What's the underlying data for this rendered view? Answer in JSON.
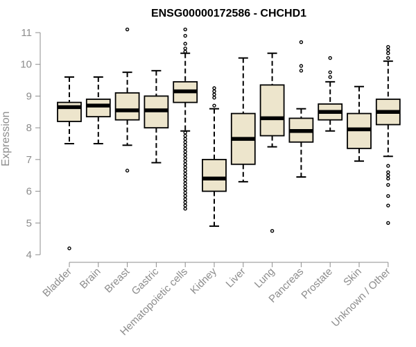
{
  "chart_data": {
    "type": "box",
    "title": "ENSG00000172586 - CHCHD1",
    "xlabel": "",
    "ylabel": "Expression",
    "ylim": [
      4,
      11
    ],
    "yticks": [
      4,
      5,
      6,
      7,
      8,
      9,
      10,
      11
    ],
    "grid": false,
    "legend": "none",
    "colors": {
      "box_fill": "#ede5cc",
      "box_stroke": "#000000",
      "axis": "#8c8c8c"
    },
    "categories": [
      "Bladder",
      "Brain",
      "Breast",
      "Gastric",
      "Hematopoietic cells",
      "Kidney",
      "Liver",
      "Lung",
      "Pancreas",
      "Prostate",
      "Skin",
      "Unknown / Other"
    ],
    "boxes": [
      {
        "category": "Bladder",
        "whisker_low": 7.5,
        "q1": 8.2,
        "median": 8.65,
        "q3": 8.8,
        "whisker_high": 9.6,
        "outliers": [
          4.2
        ]
      },
      {
        "category": "Brain",
        "whisker_low": 7.5,
        "q1": 8.35,
        "median": 8.7,
        "q3": 8.9,
        "whisker_high": 9.6,
        "outliers": []
      },
      {
        "category": "Breast",
        "whisker_low": 7.45,
        "q1": 8.25,
        "median": 8.55,
        "q3": 9.1,
        "whisker_high": 9.75,
        "outliers": [
          6.65,
          11.1
        ]
      },
      {
        "category": "Gastric",
        "whisker_low": 6.9,
        "q1": 8.0,
        "median": 8.55,
        "q3": 9.0,
        "whisker_high": 9.8,
        "outliers": []
      },
      {
        "category": "Hematopoietic cells",
        "whisker_low": 7.9,
        "q1": 8.8,
        "median": 9.15,
        "q3": 9.45,
        "whisker_high": 10.35,
        "outliers": [
          11.1,
          10.9,
          10.65,
          10.5,
          10.4,
          7.85,
          7.75,
          7.65,
          7.55,
          7.45,
          7.35,
          7.25,
          7.15,
          7.05,
          6.95,
          6.85,
          6.75,
          6.65,
          6.55,
          6.45,
          6.35,
          6.25,
          6.15,
          6.05,
          5.95,
          5.85,
          5.75,
          5.65,
          5.55,
          5.45
        ]
      },
      {
        "category": "Kidney",
        "whisker_low": 4.9,
        "q1": 6.0,
        "median": 6.4,
        "q3": 7.0,
        "whisker_high": 8.6,
        "outliers": [
          9.25,
          9.15,
          9.05,
          8.95,
          8.7
        ]
      },
      {
        "category": "Liver",
        "whisker_low": 6.3,
        "q1": 6.85,
        "median": 7.65,
        "q3": 8.45,
        "whisker_high": 10.2,
        "outliers": []
      },
      {
        "category": "Lung",
        "whisker_low": 7.4,
        "q1": 7.75,
        "median": 8.3,
        "q3": 9.35,
        "whisker_high": 10.35,
        "outliers": [
          4.75
        ]
      },
      {
        "category": "Pancreas",
        "whisker_low": 6.45,
        "q1": 7.55,
        "median": 7.9,
        "q3": 8.3,
        "whisker_high": 8.6,
        "outliers": [
          10.7,
          9.95,
          9.8
        ]
      },
      {
        "category": "Prostate",
        "whisker_low": 7.9,
        "q1": 8.25,
        "median": 8.5,
        "q3": 8.75,
        "whisker_high": 9.45,
        "outliers": [
          10.2,
          9.75,
          9.6
        ]
      },
      {
        "category": "Skin",
        "whisker_low": 6.95,
        "q1": 7.35,
        "median": 7.95,
        "q3": 8.45,
        "whisker_high": 9.3,
        "outliers": []
      },
      {
        "category": "Unknown / Other",
        "whisker_low": 7.1,
        "q1": 8.1,
        "median": 8.5,
        "q3": 8.9,
        "whisker_high": 10.1,
        "outliers": [
          10.55,
          10.45,
          10.35,
          10.2,
          6.8,
          6.6,
          6.5,
          6.4,
          6.2,
          5.85,
          5.55,
          5.0
        ]
      }
    ]
  }
}
